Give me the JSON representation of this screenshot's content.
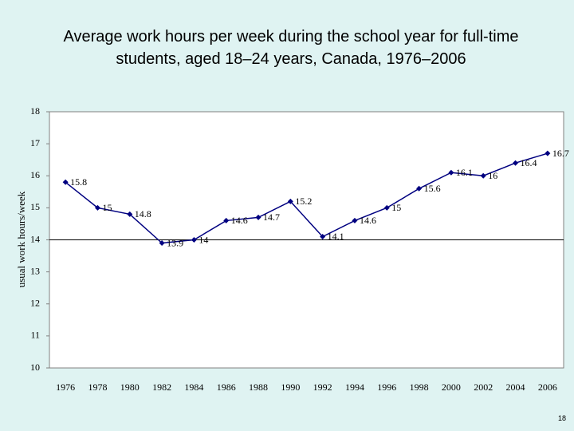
{
  "chart_data": {
    "type": "line",
    "title_lines": [
      "Average work hours per week during the school year for full-time",
      "students, aged 18–24 years, Canada, 1976–2006"
    ],
    "y_axis_label": "usual work hours/week",
    "categories": [
      "1976",
      "1978",
      "1980",
      "1982",
      "1984",
      "1986",
      "1988",
      "1990",
      "1992",
      "1994",
      "1996",
      "1998",
      "2000",
      "2002",
      "2004",
      "2006"
    ],
    "values": [
      15.8,
      15,
      14.8,
      13.9,
      14,
      14.6,
      14.7,
      15.2,
      14.1,
      14.6,
      15,
      15.6,
      16.1,
      16,
      16.4,
      16.7
    ],
    "color": "#000080",
    "ylim": [
      10,
      18
    ],
    "yticks": [
      10,
      11,
      12,
      13,
      14,
      15,
      16,
      17,
      18
    ],
    "x_axis_crosses_at": 14
  },
  "page_number": "18"
}
